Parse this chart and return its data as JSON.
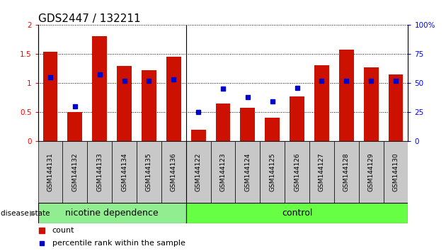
{
  "title": "GDS2447 / 132211",
  "categories": [
    "GSM144131",
    "GSM144132",
    "GSM144133",
    "GSM144134",
    "GSM144135",
    "GSM144136",
    "GSM144122",
    "GSM144123",
    "GSM144124",
    "GSM144125",
    "GSM144126",
    "GSM144127",
    "GSM144128",
    "GSM144129",
    "GSM144130"
  ],
  "counts": [
    1.53,
    0.5,
    1.8,
    1.29,
    1.22,
    1.45,
    0.2,
    0.65,
    0.58,
    0.4,
    0.77,
    1.3,
    1.57,
    1.27,
    1.15
  ],
  "percentiles": [
    55,
    30,
    57,
    52,
    52,
    53,
    25,
    45,
    38,
    34,
    46,
    52,
    52,
    52,
    52
  ],
  "group1_label": "nicotine dependence",
  "group2_label": "control",
  "group1_count": 6,
  "group2_count": 9,
  "ylim_left": [
    0,
    2
  ],
  "ylim_right": [
    0,
    100
  ],
  "yticks_left": [
    0,
    0.5,
    1.0,
    1.5,
    2.0
  ],
  "yticks_right": [
    0,
    25,
    50,
    75,
    100
  ],
  "bar_color": "#CC1100",
  "dot_color": "#0000CC",
  "group1_bg": "#90EE90",
  "group2_bg": "#66FF44",
  "cell_bg": "#C8C8C8",
  "legend_count_label": "count",
  "legend_pct_label": "percentile rank within the sample",
  "title_fontsize": 11,
  "tick_fontsize": 7.5,
  "legend_fontsize": 8,
  "group_label_fontsize": 9
}
